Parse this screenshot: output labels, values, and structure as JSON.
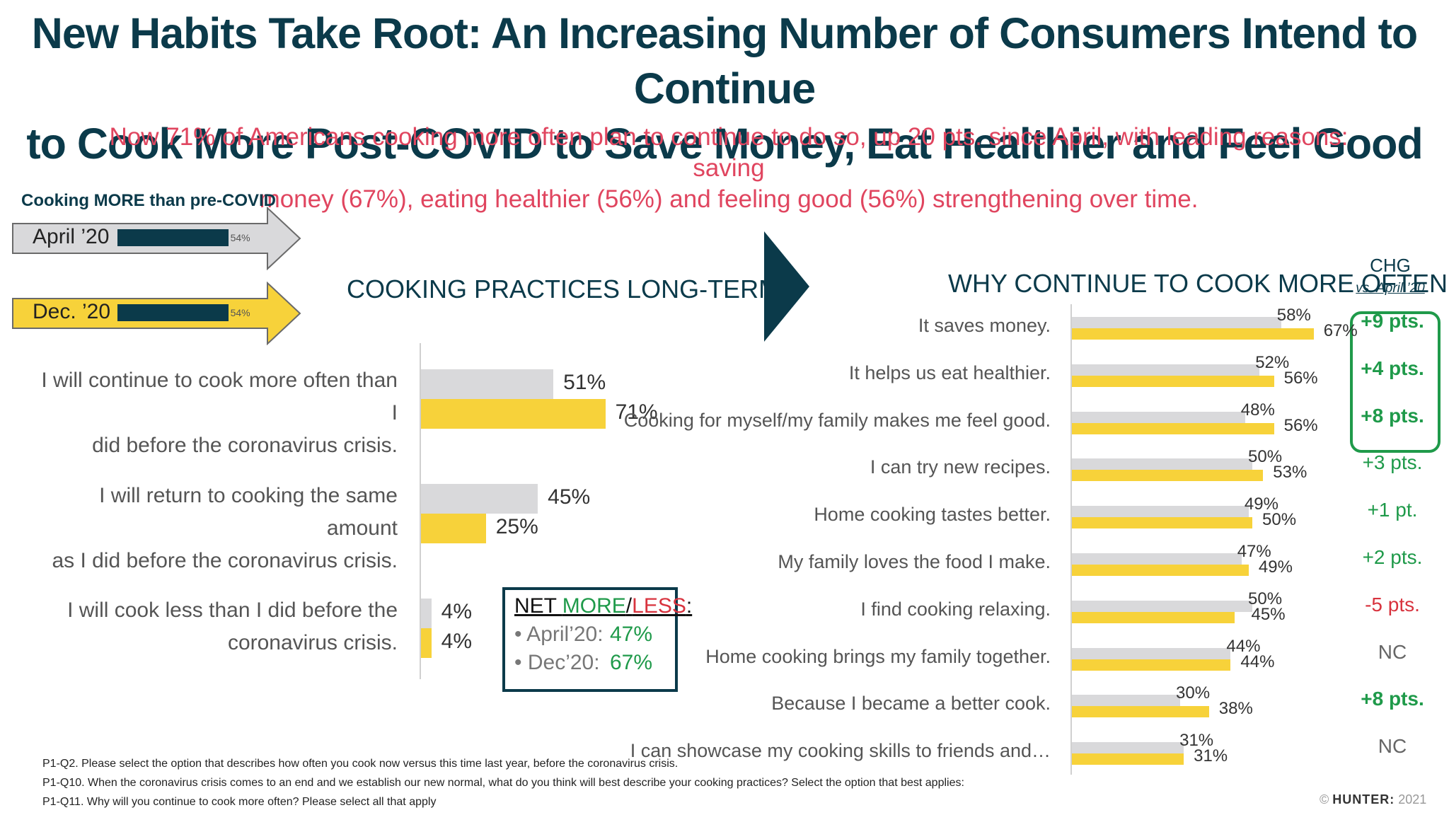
{
  "title_line1": "New Habits Take Root: An Increasing Number of Consumers Intend to Continue",
  "title_line2": "to Cook More Post-COVID to Save Money, Eat Healthier and Feel Good",
  "subtitle_line1": "Now 71% of Americans cooking more often plan to continue to do so, up 20 pts. since April, with leading reasons: saving",
  "subtitle_line2": "money (67%), eating healthier (56%) and feeling good (56%)  strengthening over time.",
  "cooking_more": {
    "label": "Cooking MORE than pre-COVID",
    "rows": [
      {
        "label": "April ’20",
        "value": 54,
        "value_label": "54%",
        "color": "#d9d9db"
      },
      {
        "label": "Dec. ’20",
        "value": 54,
        "value_label": "54%",
        "color": "#f7d23a"
      }
    ]
  },
  "net_box": {
    "heading_prefix": "NET ",
    "more": "MORE",
    "slash": "/",
    "less": "LESS",
    "colon": ":",
    "rows": [
      {
        "label": "• April’20:",
        "value": "47%"
      },
      {
        "label": "• Dec’20:",
        "value": "67%"
      }
    ]
  },
  "colors": {
    "navy": "#0b3a4a",
    "gray_bar": "#d9d9db",
    "yellow_bar": "#f7d23a",
    "green": "#1f9a4a",
    "red": "#d8333e",
    "pink": "#e0455f"
  },
  "chart_data": [
    {
      "type": "bar",
      "orientation": "horizontal",
      "title": "COOKING PRACTICES LONG-TERM",
      "categories": [
        "I will continue to cook more often than I did before the coronavirus crisis.",
        "I will return to cooking the same amount as I did before the coronavirus crisis.",
        "I will cook less than I did before the coronavirus crisis."
      ],
      "category_lines": [
        [
          "I will continue to cook more often than I",
          "did before the coronavirus crisis."
        ],
        [
          "I will return to cooking the same amount",
          "as I did before the coronavirus crisis."
        ],
        [
          "I will cook less than I did before the",
          "coronavirus crisis."
        ]
      ],
      "series": [
        {
          "color": "#d9d9db",
          "values": [
            51,
            45,
            4
          ]
        },
        {
          "color": "#f7d23a",
          "values": [
            71,
            25,
            4
          ]
        }
      ]
    },
    {
      "type": "bar",
      "orientation": "horizontal",
      "title": "WHY CONTINUE TO COOK MORE OFTEN",
      "chg_header": "CHG",
      "chg_sub": "vs. April ’20",
      "categories": [
        "It saves money.",
        "It helps us eat healthier.",
        "Cooking for myself/my family makes me feel good.",
        "I can try new recipes.",
        "Home cooking tastes better.",
        "My family loves the food I make.",
        "I find cooking relaxing.",
        "Home cooking brings my family together.",
        "Because I became a better cook.",
        "I can showcase my cooking skills to friends and…"
      ],
      "series": [
        {
          "color": "#d9d9db",
          "values": [
            58,
            52,
            48,
            50,
            49,
            47,
            50,
            44,
            30,
            31
          ]
        },
        {
          "color": "#f7d23a",
          "values": [
            67,
            56,
            56,
            53,
            50,
            49,
            45,
            44,
            38,
            31
          ]
        }
      ],
      "change": [
        {
          "text": "+9 pts.",
          "style": "bold-green"
        },
        {
          "text": "+4 pts.",
          "style": "bold-green"
        },
        {
          "text": "+8 pts.",
          "style": "bold-green"
        },
        {
          "text": "+3 pts.",
          "style": "green"
        },
        {
          "text": "+1 pt.",
          "style": "green"
        },
        {
          "text": "+2 pts.",
          "style": "green"
        },
        {
          "text": "-5 pts.",
          "style": "red"
        },
        {
          "text": "NC",
          "style": "gray"
        },
        {
          "text": "+8 pts.",
          "style": "bold-green"
        },
        {
          "text": "NC",
          "style": "gray"
        }
      ]
    }
  ],
  "footnotes": [
    "P1-Q2. Please select the option that describes how often you cook now versus this time last year, before the coronavirus crisis.",
    "P1-Q10. When the coronavirus crisis comes to an end and we establish our new normal, what do you think will best describe your cooking practices? Select the option that best applies:",
    "P1-Q11.  Why will you continue to cook more often? Please select all that apply"
  ],
  "brand": {
    "copyright": "© ",
    "name": "HUNTER:",
    "year": " 2021"
  }
}
